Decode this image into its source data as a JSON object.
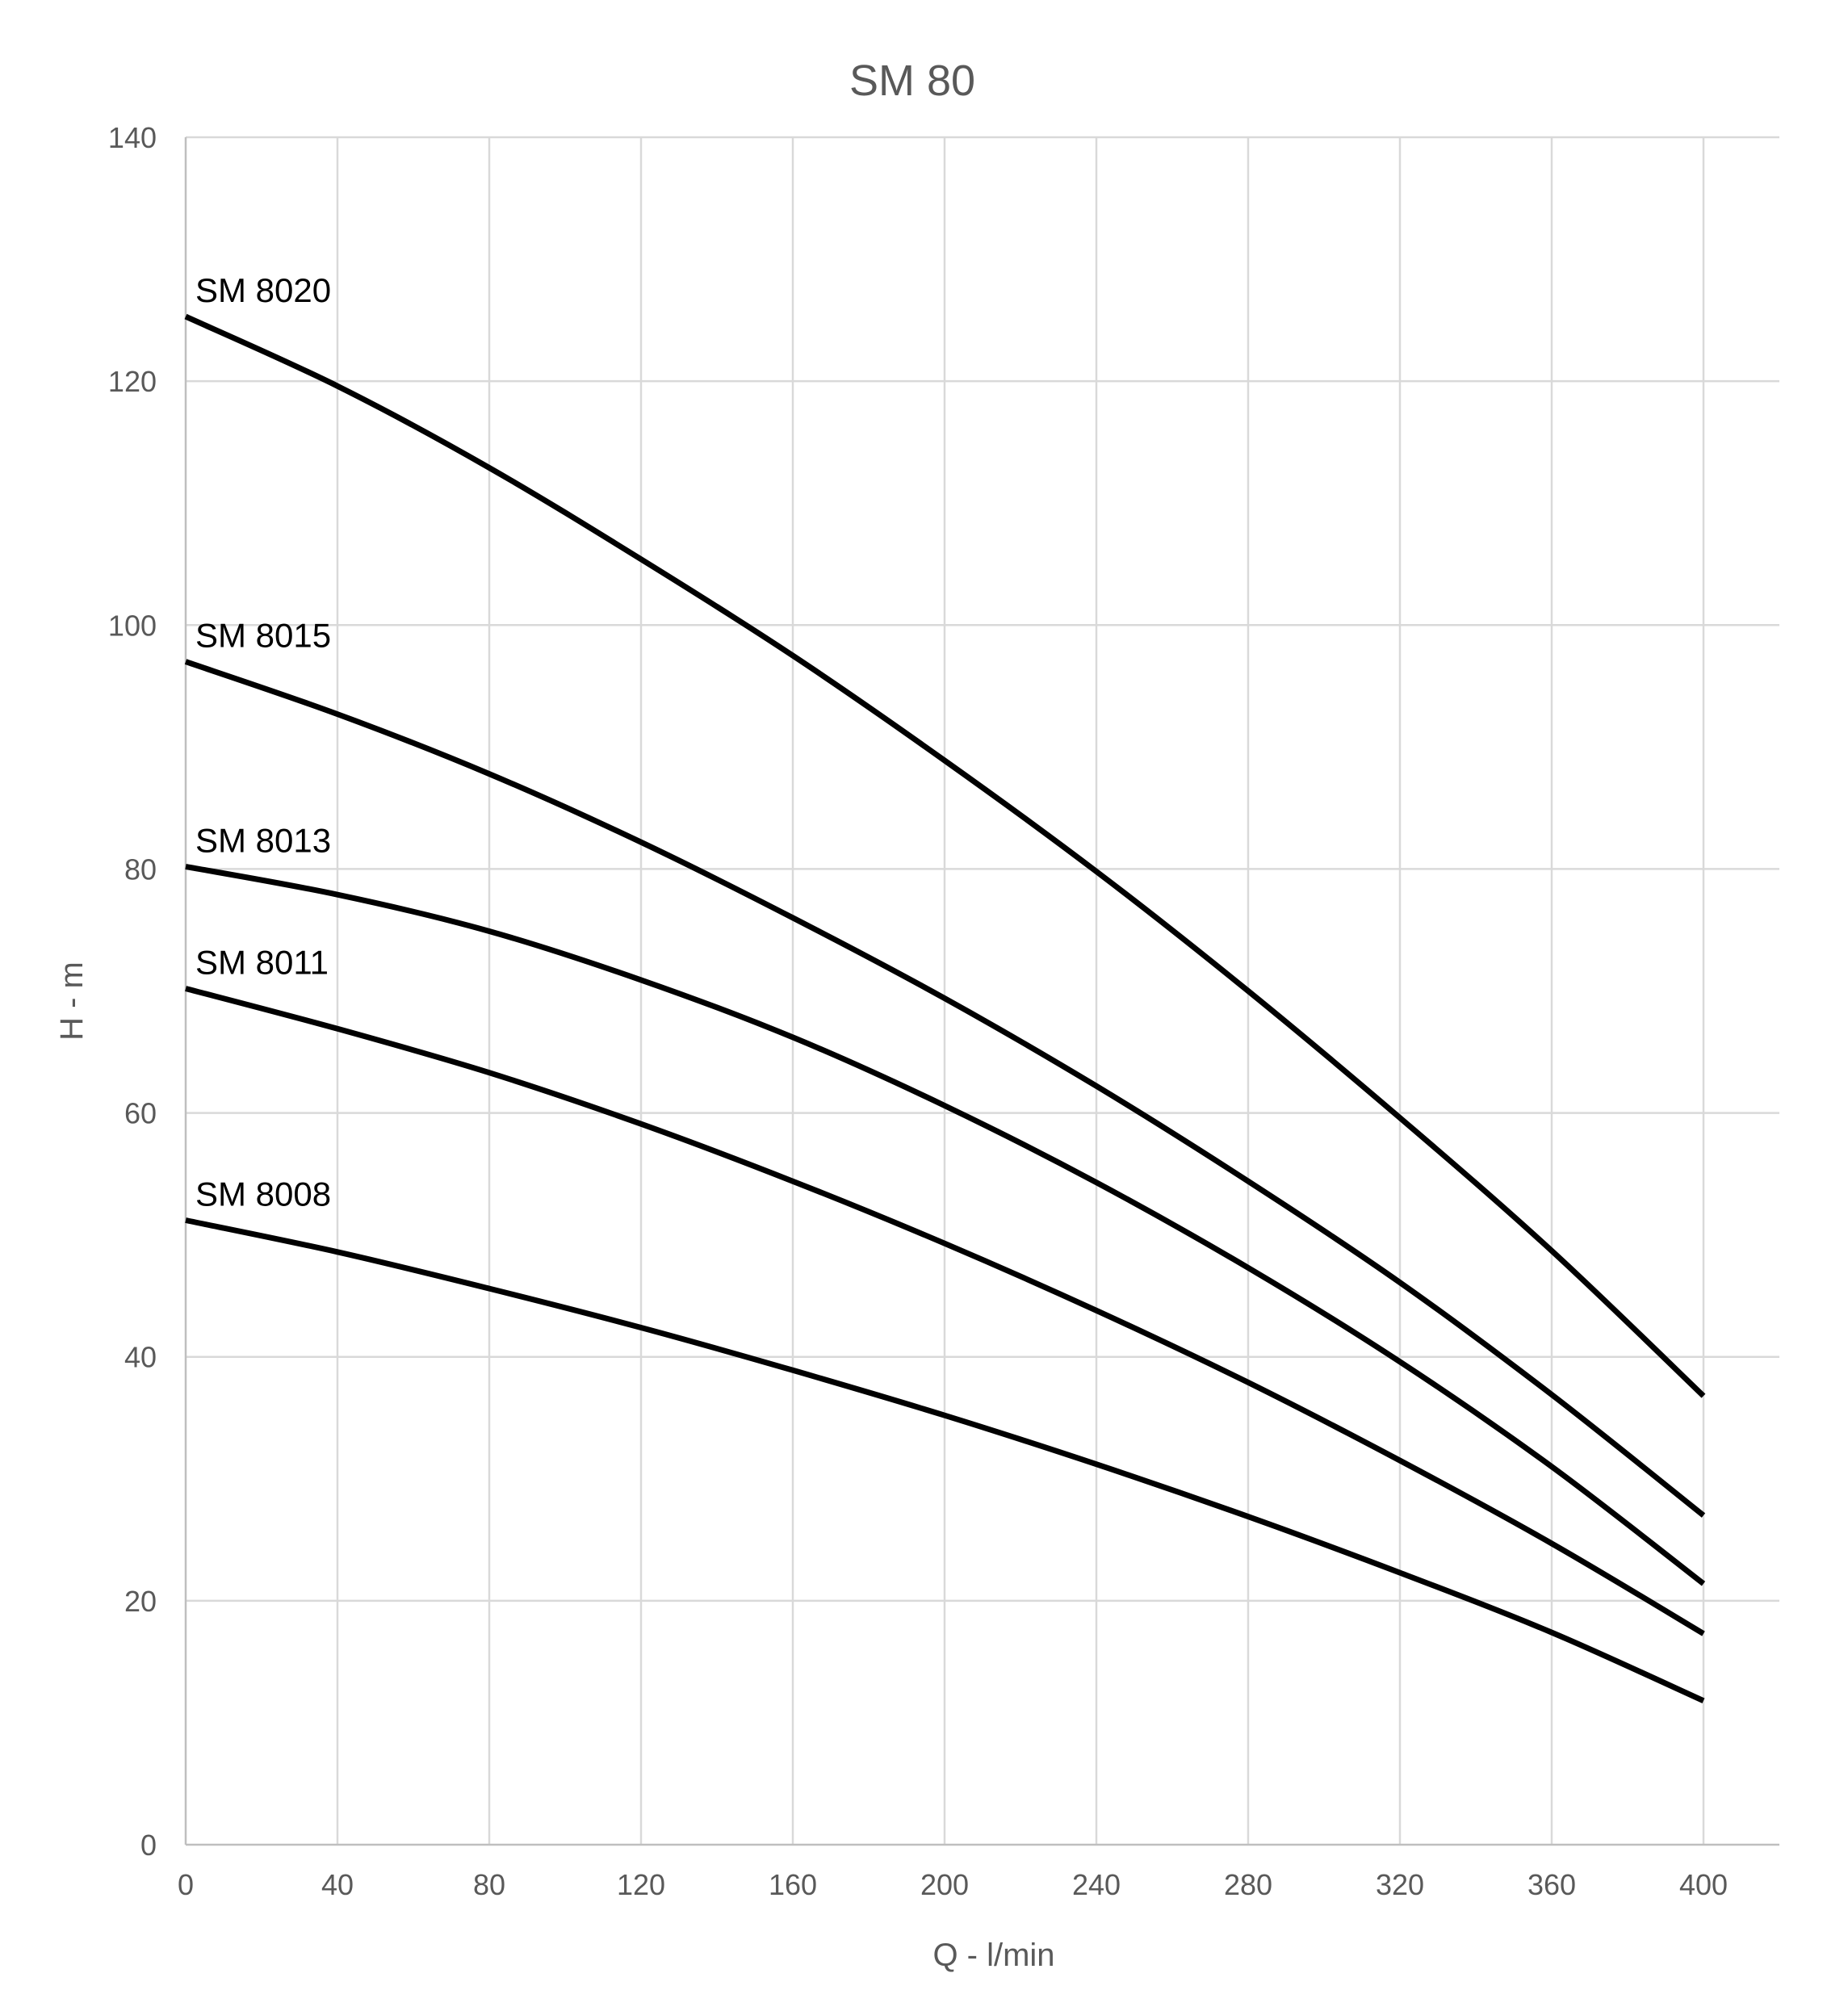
{
  "chart_data": {
    "type": "line",
    "title": "SM 80",
    "xlabel": "Q - l/min",
    "ylabel": "H - m",
    "xlim": [
      0,
      420
    ],
    "ylim": [
      0,
      140
    ],
    "x_ticks": [
      "0",
      "40",
      "80",
      "120",
      "160",
      "200",
      "240",
      "280",
      "320",
      "360",
      "400"
    ],
    "y_ticks": [
      "0",
      "20",
      "40",
      "60",
      "80",
      "100",
      "120",
      "140"
    ],
    "grid": true,
    "legend": "none",
    "line_color": "#000000",
    "x": [
      0,
      40,
      80,
      120,
      160,
      200,
      240,
      280,
      320,
      360,
      400
    ],
    "series": [
      {
        "name": "SM 8020",
        "values": [
          125.3,
          119.6,
          112.9,
          105.4,
          97.5,
          88.9,
          79.8,
          70.0,
          59.6,
          48.7,
          36.8
        ]
      },
      {
        "name": "SM 8015",
        "values": [
          97.0,
          92.7,
          87.8,
          82.2,
          76.0,
          69.4,
          62.2,
          54.4,
          46.1,
          36.9,
          27.0
        ]
      },
      {
        "name": "SM 8013",
        "values": [
          80.2,
          77.9,
          74.9,
          70.9,
          66.2,
          60.6,
          54.3,
          47.3,
          39.6,
          31.0,
          21.4
        ]
      },
      {
        "name": "SM 8011",
        "values": [
          70.2,
          66.9,
          63.3,
          59.1,
          54.4,
          49.3,
          43.8,
          37.9,
          31.5,
          24.7,
          17.3
        ]
      },
      {
        "name": "SM 8008",
        "values": [
          51.2,
          48.6,
          45.6,
          42.4,
          38.9,
          35.2,
          31.2,
          26.9,
          22.3,
          17.4,
          11.8
        ]
      }
    ]
  }
}
